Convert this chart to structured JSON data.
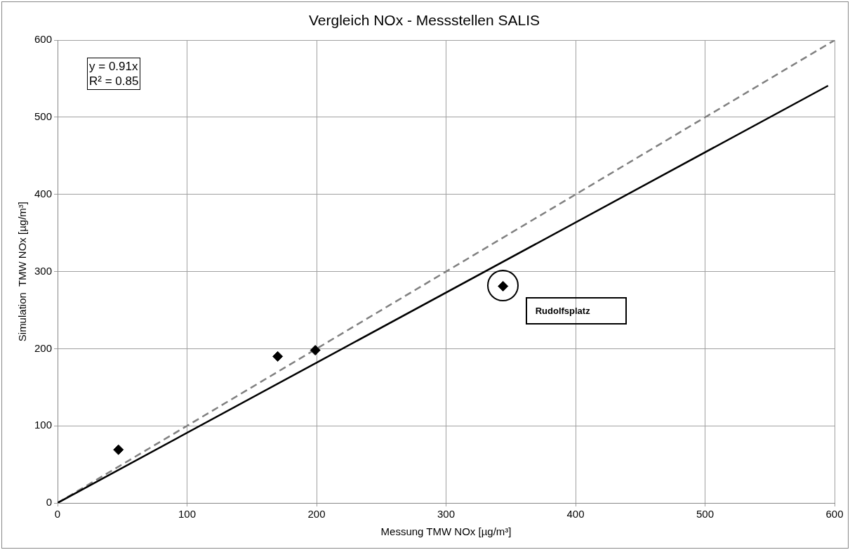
{
  "chart_data": {
    "type": "scatter",
    "title": "Vergleich NOx - Messstellen SALIS",
    "xlabel": "Messung TMW NOx [µg/m³]",
    "ylabel": "Simulation  TMW NOx [µg/m³]",
    "xlim": [
      0,
      600
    ],
    "xticks": [
      0,
      100,
      200,
      300,
      400,
      500,
      600
    ],
    "ylim": [
      0,
      600
    ],
    "yticks": [
      0,
      100,
      200,
      300,
      400,
      500,
      600
    ],
    "grid": true,
    "legend": false,
    "series": [
      {
        "color": "#000000",
        "marker": "diamond",
        "x": [
          47,
          170,
          199,
          344
        ],
        "values": [
          69,
          190,
          198,
          281
        ]
      },
      {
        "type": "line",
        "color": "#000000",
        "marker": "none",
        "line_style": "solid",
        "x": [
          0,
          595
        ],
        "values": [
          0,
          541
        ]
      },
      {
        "type": "line",
        "color": "#808080",
        "marker": "none",
        "line_style": "dashed",
        "x": [
          0,
          600
        ],
        "values": [
          0,
          600
        ]
      }
    ],
    "annotations": [
      "y = 0.91x",
      "R² = 0.85",
      "Rudolfsplatz"
    ]
  }
}
